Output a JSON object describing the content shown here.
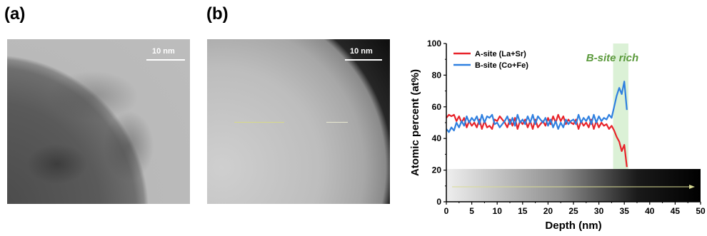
{
  "panels": {
    "a": {
      "label": "(a)",
      "scalebar": "10 nm"
    },
    "b": {
      "label": "(b)",
      "scalebar": "10 nm"
    }
  },
  "colors": {
    "a_site": "#e8232a",
    "b_site": "#2f80e0",
    "rich_band": "#dbf1d6",
    "rich_text": "#5b9a3c"
  },
  "chart_data": {
    "type": "line",
    "xlabel": "Depth (nm)",
    "ylabel": "Atomic percent (at%)",
    "xlim": [
      0,
      50
    ],
    "ylim": [
      0,
      100
    ],
    "xticks": [
      "0",
      "5",
      "10",
      "15",
      "20",
      "25",
      "30",
      "35",
      "40",
      "45",
      "50"
    ],
    "yticks": [
      "0",
      "20",
      "40",
      "60",
      "80",
      "100"
    ],
    "legend_position": "top-left",
    "annotation": "B-site rich",
    "rich_region": [
      32.8,
      35.8
    ],
    "series": [
      {
        "name": "A-site (La+Sr)",
        "x": [
          0,
          0.5,
          1,
          1.5,
          2,
          2.5,
          3,
          3.5,
          4,
          4.5,
          5,
          5.5,
          6,
          6.5,
          7,
          7.5,
          8,
          8.5,
          9,
          9.5,
          10,
          10.5,
          11,
          11.5,
          12,
          12.5,
          13,
          13.5,
          14,
          14.5,
          15,
          15.5,
          16,
          16.5,
          17,
          17.5,
          18,
          18.5,
          19,
          19.5,
          20,
          20.5,
          21,
          21.5,
          22,
          22.5,
          23,
          23.5,
          24,
          24.5,
          25,
          25.5,
          26,
          26.5,
          27,
          27.5,
          28,
          28.5,
          29,
          29.5,
          30,
          30.5,
          31,
          31.5,
          32,
          32.5,
          33,
          33.5,
          34,
          34.5,
          35,
          35.5
        ],
        "values": [
          53,
          55,
          54,
          55,
          51,
          54,
          50,
          53,
          47,
          51,
          48,
          50,
          47,
          52,
          46,
          51,
          47,
          48,
          46,
          52,
          51,
          54,
          52,
          50,
          47,
          52,
          48,
          53,
          46,
          51,
          49,
          52,
          47,
          51,
          46,
          52,
          47,
          49,
          51,
          48,
          53,
          49,
          54,
          50,
          55,
          51,
          54,
          49,
          52,
          50,
          49,
          52,
          46,
          51,
          48,
          50,
          47,
          52,
          46,
          51,
          47,
          50,
          48,
          49,
          46,
          48,
          45,
          41,
          38,
          32,
          36,
          22
        ]
      },
      {
        "name": "B-site (Co+Fe)",
        "x": [
          0,
          0.5,
          1,
          1.5,
          2,
          2.5,
          3,
          3.5,
          4,
          4.5,
          5,
          5.5,
          6,
          6.5,
          7,
          7.5,
          8,
          8.5,
          9,
          9.5,
          10,
          10.5,
          11,
          11.5,
          12,
          12.5,
          13,
          13.5,
          14,
          14.5,
          15,
          15.5,
          16,
          16.5,
          17,
          17.5,
          18,
          18.5,
          19,
          19.5,
          20,
          20.5,
          21,
          21.5,
          22,
          22.5,
          23,
          23.5,
          24,
          24.5,
          25,
          25.5,
          26,
          26.5,
          27,
          27.5,
          28,
          28.5,
          29,
          29.5,
          30,
          30.5,
          31,
          31.5,
          32,
          32.5,
          33,
          33.5,
          34,
          34.5,
          35,
          35.5
        ],
        "values": [
          46,
          44,
          47,
          45,
          50,
          47,
          51,
          48,
          54,
          50,
          53,
          51,
          54,
          49,
          55,
          50,
          54,
          53,
          55,
          49,
          50,
          47,
          49,
          51,
          54,
          49,
          53,
          48,
          55,
          50,
          52,
          49,
          54,
          50,
          55,
          49,
          54,
          52,
          50,
          53,
          48,
          52,
          47,
          51,
          46,
          50,
          47,
          52,
          49,
          51,
          52,
          49,
          55,
          50,
          53,
          51,
          54,
          49,
          55,
          50,
          54,
          51,
          53,
          52,
          55,
          53,
          60,
          67,
          72,
          68,
          76,
          58
        ]
      }
    ]
  }
}
